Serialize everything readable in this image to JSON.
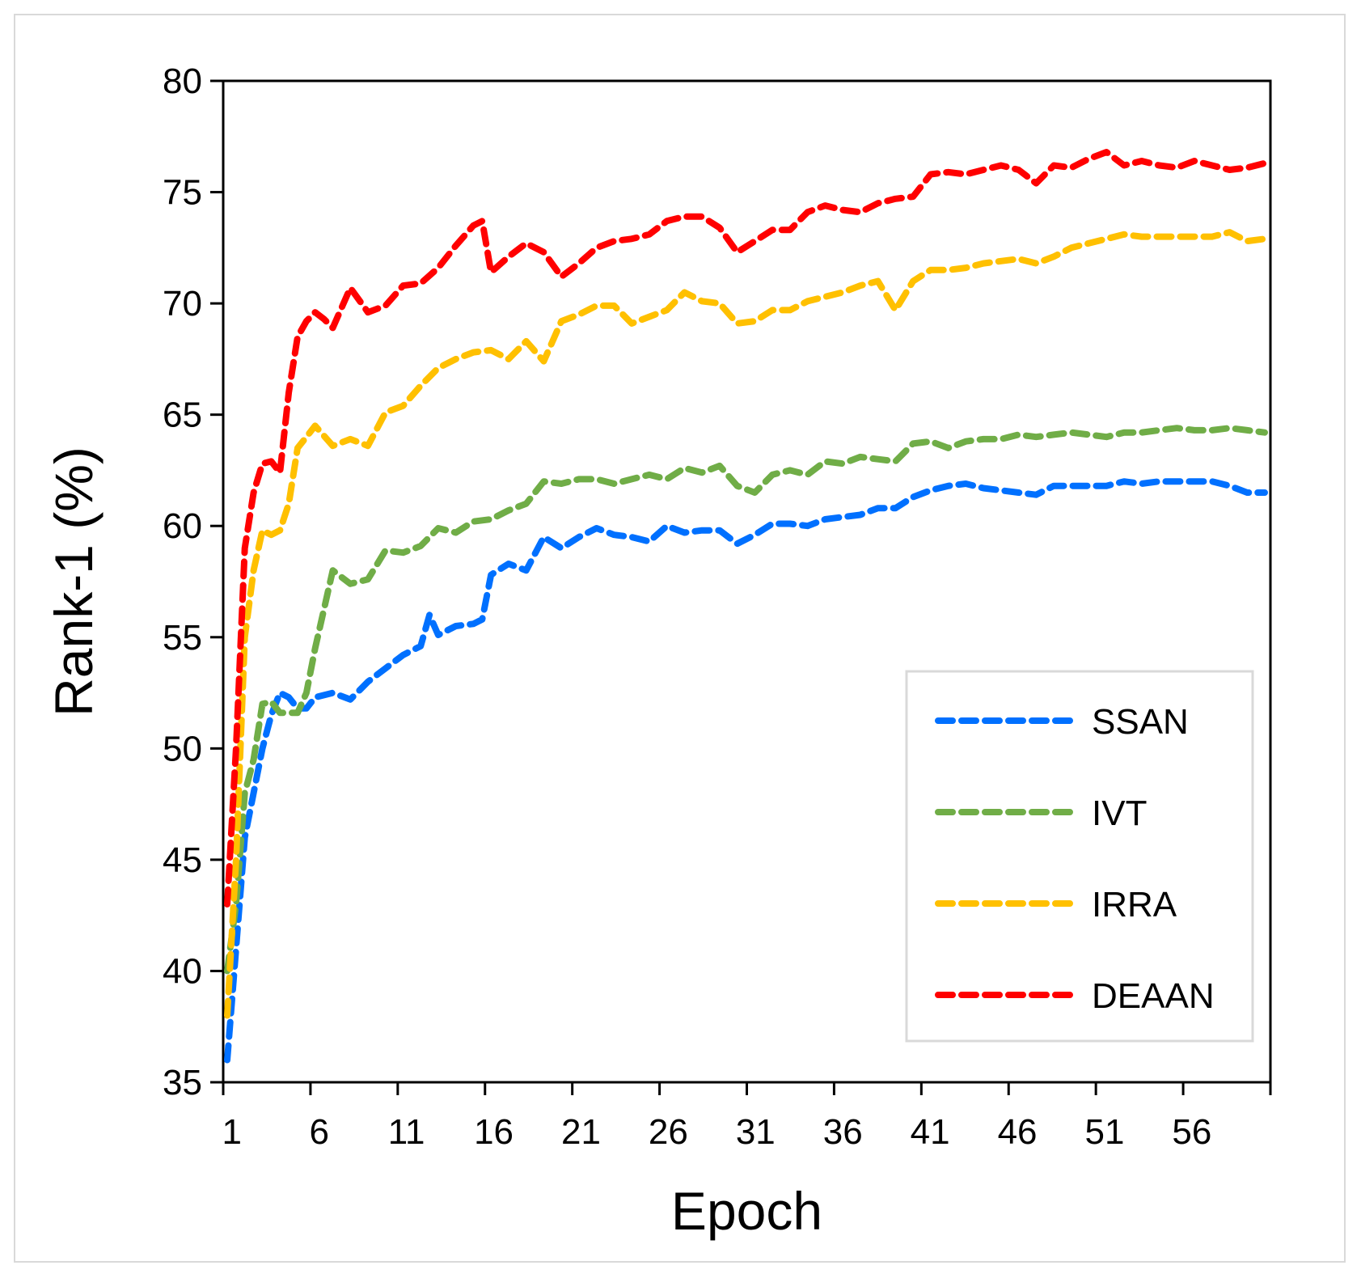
{
  "chart_data": {
    "type": "line",
    "xlabel": "Epoch",
    "ylabel": "Rank-1 (%)",
    "xlim": [
      1,
      60
    ],
    "ylim": [
      35,
      80
    ],
    "x_ticks": [
      1,
      6,
      11,
      16,
      21,
      26,
      31,
      36,
      41,
      46,
      51,
      56
    ],
    "y_ticks": [
      35,
      40,
      45,
      50,
      55,
      60,
      65,
      70,
      75,
      80
    ],
    "x_tick_labels": [
      "1",
      "6",
      "11",
      "16",
      "21",
      "26",
      "31",
      "36",
      "41",
      "46",
      "51",
      "56"
    ],
    "y_tick_labels": [
      "35",
      "40",
      "45",
      "50",
      "55",
      "60",
      "65",
      "70",
      "75",
      "80"
    ],
    "grid": false,
    "legend_position": "bottom-right",
    "line_style": "dashed",
    "series": [
      {
        "name": "SSAN",
        "color": "#0070FF",
        "x": [
          1,
          1.5,
          2,
          2.5,
          3,
          3.5,
          4,
          4.5,
          5,
          5.5,
          6,
          7,
          8,
          9,
          10,
          11,
          12,
          12.5,
          13,
          14,
          15,
          15.5,
          16,
          17,
          18,
          19,
          20,
          21,
          22,
          23,
          24,
          25,
          26,
          27,
          28,
          29,
          30,
          31,
          32,
          33,
          34,
          35,
          36,
          37,
          38,
          39,
          40,
          41,
          42,
          43,
          44,
          45,
          46,
          47,
          48,
          49,
          50,
          51,
          52,
          53,
          54,
          55,
          56,
          57,
          58,
          59,
          60
        ],
        "values": [
          36,
          41,
          46,
          48,
          50,
          51.5,
          52.5,
          52.3,
          51.8,
          51.8,
          52.3,
          52.5,
          52.2,
          53,
          53.6,
          54.2,
          54.6,
          56,
          55.1,
          55.5,
          55.6,
          55.8,
          57.8,
          58.3,
          58,
          59.5,
          59,
          59.5,
          59.9,
          59.6,
          59.5,
          59.3,
          60,
          59.7,
          59.8,
          59.8,
          59.2,
          59.6,
          60.1,
          60.1,
          60,
          60.3,
          60.4,
          60.5,
          60.8,
          60.8,
          61.3,
          61.6,
          61.8,
          61.9,
          61.7,
          61.6,
          61.5,
          61.4,
          61.8,
          61.8,
          61.8,
          61.8,
          62,
          61.9,
          62,
          62,
          62,
          62,
          61.8,
          61.5,
          61.5
        ]
      },
      {
        "name": "IVT",
        "color": "#70AD47",
        "x": [
          1,
          1.5,
          2,
          2.5,
          3,
          3.5,
          4,
          4.5,
          5,
          5.5,
          6,
          7,
          8,
          9,
          10,
          11,
          12,
          13,
          14,
          15,
          16,
          17,
          18,
          19,
          20,
          21,
          22,
          23,
          24,
          25,
          26,
          27,
          28,
          29,
          30,
          31,
          32,
          33,
          34,
          35,
          36,
          37,
          38,
          39,
          40,
          41,
          42,
          43,
          44,
          45,
          46,
          47,
          48,
          49,
          50,
          51,
          52,
          53,
          54,
          55,
          56,
          57,
          58,
          59,
          60
        ],
        "values": [
          40,
          43,
          48,
          49.5,
          52,
          52.1,
          51.6,
          51.6,
          51.6,
          52.5,
          54.5,
          58,
          57.4,
          57.6,
          58.9,
          58.8,
          59.1,
          59.9,
          59.7,
          60.2,
          60.3,
          60.7,
          61,
          62,
          61.9,
          62.1,
          62.1,
          61.9,
          62.1,
          62.3,
          62.1,
          62.6,
          62.4,
          62.7,
          61.8,
          61.5,
          62.3,
          62.5,
          62.3,
          62.9,
          62.8,
          63.1,
          63,
          62.9,
          63.7,
          63.8,
          63.5,
          63.8,
          63.9,
          63.9,
          64.1,
          64,
          64.1,
          64.2,
          64.1,
          64,
          64.2,
          64.2,
          64.3,
          64.4,
          64.3,
          64.3,
          64.4,
          64.3,
          64.2
        ]
      },
      {
        "name": "IRRA",
        "color": "#FFC000",
        "x": [
          1,
          1.5,
          2,
          2.5,
          3,
          3.5,
          4,
          4.5,
          5,
          5.5,
          6,
          7,
          8,
          9,
          10,
          11,
          12,
          13,
          14,
          15,
          16,
          17,
          18,
          19,
          20,
          21,
          22,
          23,
          24,
          25,
          26,
          27,
          28,
          29,
          30,
          31,
          32,
          33,
          34,
          35,
          36,
          37,
          38,
          39,
          40,
          41,
          42,
          43,
          44,
          45,
          46,
          47,
          48,
          49,
          50,
          51,
          52,
          53,
          54,
          55,
          56,
          57,
          58,
          59,
          60
        ],
        "values": [
          38,
          45,
          55,
          58,
          59.8,
          59.6,
          59.8,
          61,
          63.5,
          64,
          64.5,
          63.6,
          63.9,
          63.6,
          65.1,
          65.4,
          66.3,
          67.1,
          67.5,
          67.8,
          67.9,
          67.5,
          68.3,
          67.4,
          69.2,
          69.5,
          69.9,
          69.9,
          69.1,
          69.4,
          69.7,
          70.5,
          70.1,
          70,
          69.1,
          69.2,
          69.7,
          69.7,
          70.1,
          70.3,
          70.5,
          70.8,
          71,
          69.7,
          71,
          71.5,
          71.5,
          71.6,
          71.8,
          71.9,
          72,
          71.8,
          72.1,
          72.5,
          72.7,
          72.9,
          73.1,
          73,
          73,
          73,
          73,
          73,
          73.2,
          72.8,
          72.9
        ]
      },
      {
        "name": "DEAAN",
        "color": "#FF0000",
        "x": [
          1,
          1.5,
          2,
          2.5,
          3,
          3.5,
          4,
          4.5,
          5,
          5.5,
          6,
          6.5,
          7,
          8,
          9,
          10,
          11,
          12,
          13,
          14,
          15,
          15.5,
          16,
          17,
          18,
          19,
          20,
          21,
          22,
          23,
          24,
          25,
          26,
          27,
          28,
          29,
          30,
          31,
          32,
          33,
          34,
          35,
          36,
          37,
          38,
          39,
          40,
          41,
          42,
          43,
          44,
          45,
          46,
          47,
          48,
          49,
          50,
          51,
          52,
          53,
          54,
          55,
          56,
          57,
          58,
          59,
          60
        ],
        "values": [
          43,
          50,
          59,
          61.5,
          62.8,
          62.9,
          62.4,
          66,
          68.5,
          69.2,
          69.6,
          69.3,
          68.9,
          70.7,
          69.6,
          69.9,
          70.8,
          70.9,
          71.6,
          72.6,
          73.5,
          73.7,
          71.4,
          72.1,
          72.7,
          72.3,
          71.2,
          71.8,
          72.5,
          72.8,
          72.9,
          73.1,
          73.7,
          73.9,
          73.9,
          73.4,
          72.3,
          72.8,
          73.3,
          73.3,
          74.1,
          74.4,
          74.2,
          74.1,
          74.5,
          74.7,
          74.8,
          75.8,
          75.9,
          75.8,
          76,
          76.2,
          76,
          75.4,
          76.2,
          76.1,
          76.5,
          76.8,
          76.2,
          76.4,
          76.2,
          76.1,
          76.4,
          76.2,
          76,
          76.1,
          76.3
        ]
      }
    ]
  }
}
